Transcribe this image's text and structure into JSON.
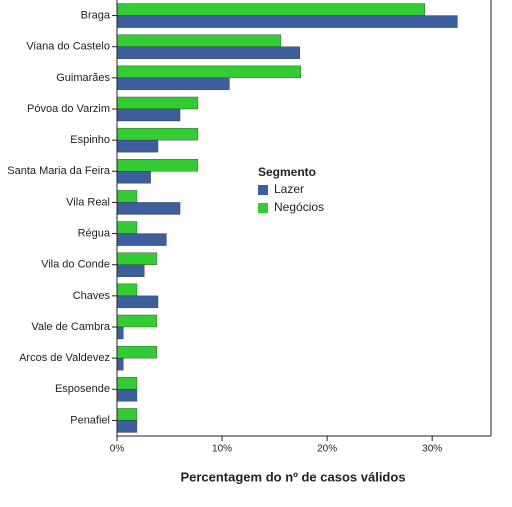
{
  "chart_data": {
    "type": "bar",
    "orientation": "horizontal",
    "x_label": "Percentagem do nº de casos válidos",
    "legend_title": "Segmento",
    "categories": [
      "Braga",
      "Viana do Castelo",
      "Guimarães",
      "Póvoa do Varzim",
      "Espinho",
      "Santa Maria da Feira",
      "Vila Real",
      "Régua",
      "Vila do Conde",
      "Chaves",
      "Vale de Cambra",
      "Arcos de Valdevez",
      "Esposende",
      "Penafiel"
    ],
    "series": [
      {
        "name": "Negócios",
        "color": "#33cc33",
        "values": [
          29.3,
          15.6,
          17.5,
          7.7,
          7.7,
          7.7,
          1.9,
          1.9,
          3.8,
          1.9,
          3.8,
          3.8,
          1.9,
          1.9
        ]
      },
      {
        "name": "Lazer",
        "color": "#3d5f9e",
        "values": [
          32.4,
          17.4,
          10.7,
          6.0,
          3.9,
          3.2,
          6.0,
          4.7,
          2.6,
          3.9,
          0.6,
          0.6,
          1.9,
          1.9
        ]
      }
    ],
    "legend_order": [
      1,
      0
    ],
    "xlim": [
      0,
      35.6
    ],
    "xticks": [
      {
        "value": 0,
        "label": "0%"
      },
      {
        "value": 10,
        "label": "10%"
      },
      {
        "value": 20,
        "label": "20%"
      },
      {
        "value": 30,
        "label": "30%"
      }
    ]
  }
}
